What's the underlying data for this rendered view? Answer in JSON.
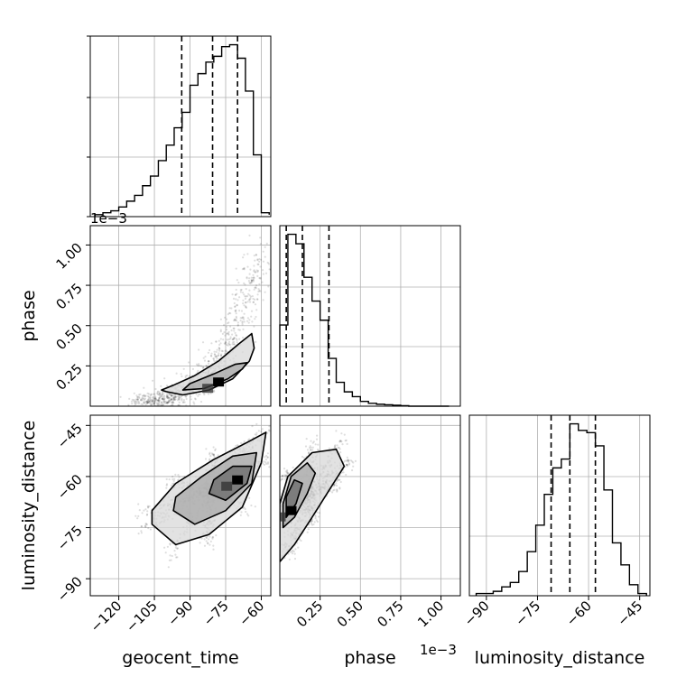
{
  "chart_data": {
    "type": "corner",
    "grid": true,
    "parameters": [
      {
        "name": "geocent_time",
        "label": "geocent_time",
        "range": [
          -132,
          -56
        ],
        "ticks": [
          -120,
          -105,
          -90,
          -75,
          -60
        ],
        "tick_labels": [
          "−120",
          "−105",
          "−90",
          "−75",
          "−60"
        ]
      },
      {
        "name": "phase",
        "label": "phase",
        "scale_label": "1e−3",
        "range": [
          0.0,
          1.12
        ],
        "ticks": [
          0.25,
          0.5,
          0.75,
          1.0
        ],
        "tick_labels": [
          "0.25",
          "0.50",
          "0.75",
          "1.00"
        ]
      },
      {
        "name": "luminosity_distance",
        "label": "luminosity_distance",
        "range": [
          -95,
          -42
        ],
        "ticks": [
          -90,
          -75,
          -60,
          -45
        ],
        "tick_labels": [
          "−90",
          "−75",
          "−60",
          "−45"
        ]
      }
    ],
    "marginals": [
      {
        "parameter": "geocent_time",
        "bins": [
          -130,
          -126.67,
          -123.33,
          -120,
          -116.67,
          -113.33,
          -110,
          -106.67,
          -103.33,
          -100,
          -96.67,
          -93.33,
          -90,
          -86.67,
          -83.33,
          -80,
          -76.67,
          -73.33,
          -70,
          -66.67,
          -63.33,
          -60,
          -56.67
        ],
        "heights": [
          0.5,
          1.0,
          1.5,
          2.5,
          4,
          5.5,
          8,
          10.5,
          14.5,
          18.5,
          23,
          27,
          34,
          37,
          40,
          41.5,
          44,
          44.5,
          41,
          32.5,
          16,
          1,
          0.5
        ],
        "quantiles": [
          -93.5,
          -80.5,
          -70.0
        ]
      },
      {
        "parameter": "phase",
        "bins": [
          0.0,
          0.05,
          0.1,
          0.15,
          0.2,
          0.25,
          0.3,
          0.35,
          0.4,
          0.45,
          0.5,
          0.55,
          0.6,
          0.65,
          0.7,
          0.75,
          0.8,
          0.85,
          0.9,
          0.95,
          1.0,
          1.05
        ],
        "heights": [
          8.5,
          18,
          17,
          13.5,
          11,
          9,
          5,
          2.5,
          1.5,
          1,
          0.5,
          0.3,
          0.2,
          0.15,
          0.1,
          0.05,
          0,
          0,
          0,
          0,
          0
        ],
        "quantiles": [
          0.04,
          0.14,
          0.305
        ]
      },
      {
        "parameter": "luminosity_distance",
        "bins": [
          -93,
          -90.5,
          -88,
          -85.5,
          -83,
          -80.5,
          -78,
          -75.5,
          -73,
          -70.5,
          -68,
          -65.5,
          -63,
          -60.5,
          -58,
          -55.5,
          -53,
          -50.5,
          -48,
          -45.5,
          -43
        ],
        "heights": [
          0.1,
          0.1,
          0.2,
          0.4,
          0.6,
          1.1,
          2.0,
          3.2,
          4.6,
          5.8,
          6.2,
          7.8,
          7.5,
          7.4,
          6.8,
          4.8,
          2.4,
          1.4,
          0.5,
          0.1
        ],
        "quantiles": [
          -71.0,
          -65.5,
          -58.0
        ]
      }
    ],
    "joint_2d": [
      {
        "x": "geocent_time",
        "y": "phase",
        "density_peak": [
          -78,
          0.15
        ],
        "contours": [
          [
            [
              -100,
              0.09
            ],
            [
              -93,
              0.07
            ],
            [
              -82,
              0.1
            ],
            [
              -72,
              0.17
            ],
            [
              -65,
              0.28
            ],
            [
              -63,
              0.36
            ],
            [
              -64,
              0.45
            ],
            [
              -70,
              0.38
            ],
            [
              -78,
              0.28
            ],
            [
              -88,
              0.19
            ],
            [
              -97,
              0.13
            ],
            [
              -102,
              0.1
            ]
          ],
          [
            [
              -93,
              0.1
            ],
            [
              -84,
              0.11
            ],
            [
              -74,
              0.17
            ],
            [
              -68,
              0.23
            ],
            [
              -66,
              0.27
            ],
            [
              -71,
              0.26
            ],
            [
              -80,
              0.2
            ],
            [
              -90,
              0.14
            ]
          ]
        ]
      },
      {
        "x": "geocent_time",
        "y": "luminosity_distance",
        "density_peak": [
          -70,
          -61
        ],
        "contours": [
          [
            [
              -106,
              -74
            ],
            [
              -96,
              -80
            ],
            [
              -82,
              -77
            ],
            [
              -68,
              -69
            ],
            [
              -60,
              -56
            ],
            [
              -58,
              -47
            ],
            [
              -66,
              -50
            ],
            [
              -80,
              -55
            ],
            [
              -96,
              -62
            ],
            [
              -106,
              -70
            ]
          ],
          [
            [
              -97,
              -70
            ],
            [
              -88,
              -74
            ],
            [
              -75,
              -70
            ],
            [
              -64,
              -62
            ],
            [
              -62,
              -53
            ],
            [
              -72,
              -54
            ],
            [
              -85,
              -60
            ],
            [
              -96,
              -66
            ]
          ],
          [
            [
              -82,
              -65
            ],
            [
              -75,
              -67
            ],
            [
              -66,
              -62
            ],
            [
              -64,
              -57
            ],
            [
              -72,
              -57
            ],
            [
              -80,
              -61
            ]
          ]
        ]
      },
      {
        "x": "phase",
        "y": "luminosity_distance",
        "density_peak": [
          0.07,
          -70
        ],
        "contours": [
          [
            [
              0.0,
              -85
            ],
            [
              0.09,
              -80
            ],
            [
              0.2,
              -72
            ],
            [
              0.32,
              -63
            ],
            [
              0.4,
              -57
            ],
            [
              0.35,
              -52
            ],
            [
              0.2,
              -53
            ],
            [
              0.05,
              -60
            ],
            [
              0.0,
              -68
            ]
          ],
          [
            [
              0.02,
              -75
            ],
            [
              0.09,
              -72
            ],
            [
              0.17,
              -65
            ],
            [
              0.22,
              -59
            ],
            [
              0.17,
              -56
            ],
            [
              0.07,
              -60
            ],
            [
              0.02,
              -68
            ]
          ],
          [
            [
              0.04,
              -72
            ],
            [
              0.1,
              -68
            ],
            [
              0.14,
              -62
            ],
            [
              0.09,
              -61
            ],
            [
              0.04,
              -66
            ]
          ]
        ]
      }
    ]
  }
}
